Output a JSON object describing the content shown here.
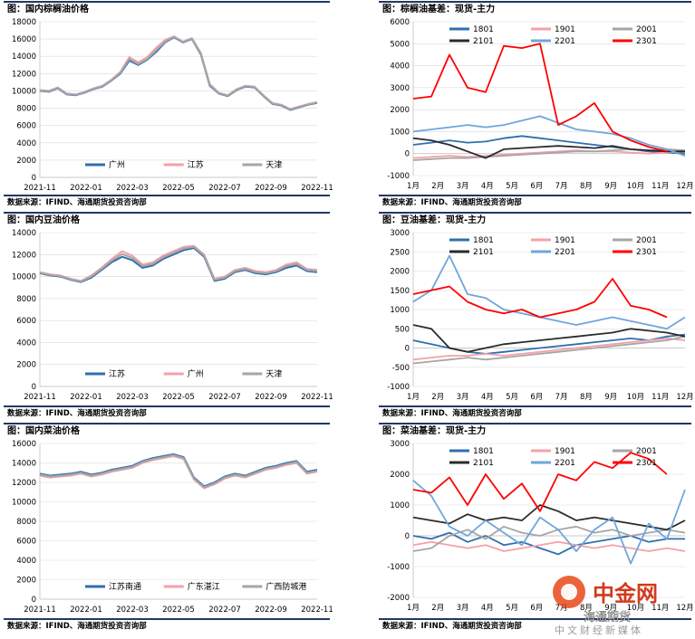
{
  "charts": [
    {
      "title": "图：国内棕榈油价格",
      "source": "数据来源：IFIND、海通期货投资咨询部",
      "chart_data": {
        "type": "line",
        "xticks": [
          "2021-11",
          "2022-01",
          "2022-03",
          "2022-05",
          "2022-07",
          "2022-09",
          "2022-11"
        ],
        "yticks": [
          0,
          2000,
          4000,
          6000,
          8000,
          10000,
          12000,
          14000,
          16000,
          18000
        ],
        "ylim": [
          0,
          18000
        ],
        "series": [
          {
            "name": "广州",
            "color": "#2f6fad",
            "values": [
              10000,
              9900,
              10300,
              9600,
              9500,
              9800,
              10200,
              10500,
              11200,
              12000,
              13500,
              13000,
              13600,
              14500,
              15600,
              16200,
              15600,
              16000,
              14200,
              10600,
              9700,
              9400,
              10100,
              10500,
              10400,
              9400,
              8500,
              8300,
              7800,
              8100,
              8400,
              8600
            ]
          },
          {
            "name": "江苏",
            "color": "#f4a0a8",
            "values": [
              10100,
              10000,
              10400,
              9700,
              9600,
              9900,
              10300,
              10600,
              11300,
              12200,
              13900,
              13300,
              13900,
              15000,
              15900,
              16300,
              15700,
              16100,
              14400,
              10800,
              9800,
              9500,
              10200,
              10600,
              10500,
              9500,
              8600,
              8400,
              7900,
              8200,
              8500,
              8700
            ]
          },
          {
            "name": "天津",
            "color": "#a6a6a6",
            "values": [
              10050,
              9950,
              10350,
              9650,
              9550,
              9850,
              10250,
              10550,
              11250,
              12100,
              13700,
              13100,
              13700,
              14700,
              15700,
              16250,
              15650,
              16050,
              14300,
              10700,
              9750,
              9450,
              10150,
              10550,
              10450,
              9450,
              8550,
              8350,
              7850,
              8150,
              8450,
              8650
            ]
          }
        ]
      }
    },
    {
      "title": "图：棕榈油基差：现货-主力",
      "source": "数据来源：IFIND、海通期货投资咨询部",
      "chart_data": {
        "type": "line",
        "xticks": [
          "1月",
          "2月",
          "3月",
          "4月",
          "5月",
          "6月",
          "7月",
          "8月",
          "9月",
          "10月",
          "11月",
          "12月"
        ],
        "yticks": [
          -1000,
          0,
          1000,
          2000,
          3000,
          4000,
          5000,
          6000
        ],
        "ylim": [
          -1000,
          6000
        ],
        "series": [
          {
            "name": "1801",
            "color": "#2f6fad",
            "values": [
              400,
              500,
              600,
              500,
              550,
              700,
              800,
              700,
              600,
              500,
              400,
              300,
              200,
              100,
              50,
              0
            ]
          },
          {
            "name": "1901",
            "color": "#f4a0a8",
            "values": [
              -200,
              -150,
              -100,
              -150,
              -100,
              -50,
              0,
              50,
              100,
              150,
              100,
              100,
              50,
              0,
              50,
              100
            ]
          },
          {
            "name": "2001",
            "color": "#a6a6a6",
            "values": [
              -300,
              -250,
              -200,
              -200,
              -150,
              -100,
              -50,
              0,
              50,
              100,
              100,
              150,
              200,
              150,
              200,
              150
            ]
          },
          {
            "name": "2101",
            "color": "#2b2b2b",
            "values": [
              700,
              600,
              400,
              100,
              -200,
              200,
              250,
              300,
              350,
              300,
              250,
              350,
              200,
              150,
              100,
              100
            ]
          },
          {
            "name": "2201",
            "color": "#6ea6dc",
            "values": [
              1000,
              1100,
              1200,
              1300,
              1200,
              1300,
              1500,
              1700,
              1400,
              1100,
              1000,
              900,
              700,
              400,
              200,
              -100
            ]
          },
          {
            "name": "2301",
            "color": "#ff0000",
            "values": [
              2500,
              2600,
              4500,
              3000,
              2800,
              4900,
              4800,
              5000,
              1300,
              1700,
              2300,
              1000,
              600,
              300,
              100,
              null
            ]
          }
        ]
      }
    },
    {
      "title": "图：国内豆油价格",
      "source": "数据来源：IFIND、海通期货投资咨询部",
      "chart_data": {
        "type": "line",
        "xticks": [
          "2021-11",
          "2022-01",
          "2022-03",
          "2022-05",
          "2022-07",
          "2022-09",
          "2022-11"
        ],
        "yticks": [
          0,
          2000,
          4000,
          6000,
          8000,
          10000,
          12000,
          14000
        ],
        "ylim": [
          0,
          14000
        ],
        "series": [
          {
            "name": "江苏",
            "color": "#2f6fad",
            "values": [
              10300,
              10100,
              10000,
              9700,
              9500,
              9900,
              10600,
              11300,
              11800,
              11500,
              10800,
              11000,
              11600,
              12000,
              12400,
              12600,
              11800,
              9600,
              9800,
              10400,
              10600,
              10300,
              10200,
              10400,
              10800,
              11000,
              10500,
              10400
            ]
          },
          {
            "name": "广州",
            "color": "#f4a0a8",
            "values": [
              10400,
              10200,
              10100,
              9800,
              9600,
              10100,
              10800,
              11600,
              12300,
              11900,
              11100,
              11300,
              11900,
              12300,
              12700,
              12800,
              12000,
              9800,
              10000,
              10600,
              10800,
              10500,
              10400,
              10600,
              11100,
              11300,
              10700,
              10600
            ]
          },
          {
            "name": "天津",
            "color": "#a6a6a6",
            "values": [
              10350,
              10150,
              10050,
              9750,
              9550,
              10000,
              10700,
              11450,
              12050,
              11700,
              10950,
              11150,
              11750,
              12150,
              12550,
              12700,
              11900,
              9700,
              9900,
              10500,
              10700,
              10400,
              10300,
              10500,
              10950,
              11150,
              10600,
              10500
            ]
          }
        ]
      }
    },
    {
      "title": "图：豆油基差：现货-主力",
      "source": "数据来源：IFIND、海通期货投资咨询部",
      "chart_data": {
        "type": "line",
        "xticks": [
          "1月",
          "2月",
          "3月",
          "4月",
          "5月",
          "6月",
          "7月",
          "8月",
          "9月",
          "10月",
          "11月",
          "12月"
        ],
        "yticks": [
          -1000,
          -500,
          0,
          500,
          1000,
          1500,
          2000,
          2500,
          3000
        ],
        "ylim": [
          -1000,
          3000
        ],
        "series": [
          {
            "name": "1801",
            "color": "#2f6fad",
            "values": [
              200,
              100,
              0,
              -100,
              -150,
              -100,
              -50,
              0,
              50,
              100,
              150,
              200,
              250,
              200,
              300,
              350
            ]
          },
          {
            "name": "1901",
            "color": "#f4a0a8",
            "values": [
              -300,
              -250,
              -200,
              -200,
              -150,
              -200,
              -150,
              -100,
              -50,
              0,
              50,
              100,
              150,
              200,
              250,
              200
            ]
          },
          {
            "name": "2001",
            "color": "#a6a6a6",
            "values": [
              -400,
              -350,
              -300,
              -250,
              -300,
              -250,
              -200,
              -150,
              -100,
              -50,
              0,
              50,
              100,
              150,
              200,
              300
            ]
          },
          {
            "name": "2101",
            "color": "#2b2b2b",
            "values": [
              600,
              500,
              0,
              -100,
              0,
              100,
              150,
              200,
              250,
              300,
              350,
              400,
              500,
              450,
              400,
              300
            ]
          },
          {
            "name": "2201",
            "color": "#6ea6dc",
            "values": [
              1200,
              1500,
              2400,
              1400,
              1300,
              1000,
              900,
              800,
              700,
              600,
              700,
              800,
              700,
              600,
              500,
              800
            ]
          },
          {
            "name": "2301",
            "color": "#ff0000",
            "values": [
              1400,
              1500,
              1600,
              1200,
              1000,
              900,
              1000,
              800,
              900,
              1000,
              1200,
              1800,
              1100,
              1000,
              800,
              null
            ]
          }
        ]
      }
    },
    {
      "title": "图：国内菜油价格",
      "source": "数据来源：IFIND、海通期货投资咨询部",
      "chart_data": {
        "type": "line",
        "xticks": [
          "2021-11",
          "2022-01",
          "2022-03",
          "2022-05",
          "2022-07",
          "2022-09",
          "2022-11"
        ],
        "yticks": [
          0,
          2000,
          4000,
          6000,
          8000,
          10000,
          12000,
          14000,
          16000
        ],
        "ylim": [
          0,
          16000
        ],
        "series": [
          {
            "name": "江苏南通",
            "color": "#2f6fad",
            "values": [
              12900,
              12700,
              12800,
              12900,
              13100,
              12800,
              13000,
              13300,
              13500,
              13700,
              14200,
              14500,
              14700,
              14900,
              14600,
              12500,
              11600,
              12000,
              12600,
              12900,
              12700,
              13100,
              13500,
              13700,
              14000,
              14200,
              13100,
              13300
            ]
          },
          {
            "name": "广东湛江",
            "color": "#f4a0a8",
            "values": [
              12700,
              12500,
              12600,
              12700,
              12900,
              12600,
              12800,
              13100,
              13300,
              13500,
              14000,
              14300,
              14500,
              14700,
              14400,
              12300,
              11400,
              11800,
              12400,
              12700,
              12500,
              12900,
              13300,
              13500,
              13800,
              14000,
              12900,
              13100
            ]
          },
          {
            "name": "广西防城港",
            "color": "#a6a6a6",
            "values": [
              12800,
              12600,
              12700,
              12800,
              13000,
              12700,
              12900,
              13200,
              13400,
              13600,
              14100,
              14400,
              14600,
              14800,
              14500,
              12400,
              11500,
              11900,
              12500,
              12800,
              12600,
              13000,
              13400,
              13600,
              13900,
              14100,
              13000,
              13200
            ]
          }
        ]
      }
    },
    {
      "title": "图：菜油基差：现货-主力",
      "source": "数据来源：IFIND、海通期货投资咨询部",
      "chart_data": {
        "type": "line",
        "xticks": [
          "1月",
          "2月",
          "3月",
          "4月",
          "5月",
          "6月",
          "7月",
          "8月",
          "9月",
          "10月",
          "11月",
          "12月"
        ],
        "yticks": [
          -2000,
          -1000,
          0,
          1000,
          2000,
          3000
        ],
        "ylim": [
          -2000,
          3000
        ],
        "series": [
          {
            "name": "1801",
            "color": "#2f6fad",
            "values": [
              0,
              -100,
              100,
              -200,
              0,
              -300,
              -200,
              -400,
              -600,
              -300,
              -200,
              -100,
              0,
              -200,
              -100,
              -100
            ]
          },
          {
            "name": "1901",
            "color": "#f4a0a8",
            "values": [
              -300,
              -200,
              -300,
              -400,
              -300,
              -500,
              -400,
              -300,
              -200,
              -300,
              -400,
              -300,
              -400,
              -500,
              -400,
              -500
            ]
          },
          {
            "name": "2001",
            "color": "#a6a6a6",
            "values": [
              -500,
              -400,
              0,
              200,
              -100,
              300,
              100,
              0,
              200,
              300,
              100,
              200,
              0,
              100,
              200,
              100
            ]
          },
          {
            "name": "2101",
            "color": "#2b2b2b",
            "values": [
              600,
              500,
              400,
              700,
              500,
              600,
              500,
              1000,
              800,
              500,
              600,
              500,
              400,
              300,
              200,
              500
            ]
          },
          {
            "name": "2201",
            "color": "#6ea6dc",
            "values": [
              1800,
              1300,
              300,
              0,
              500,
              100,
              -300,
              600,
              200,
              -500,
              200,
              600,
              -900,
              400,
              -100,
              1500
            ]
          },
          {
            "name": "2301",
            "color": "#ff0000",
            "values": [
              1500,
              1400,
              1900,
              1000,
              2000,
              1200,
              1700,
              800,
              2000,
              1800,
              2400,
              2200,
              2700,
              2500,
              2000,
              null
            ]
          }
        ]
      }
    }
  ],
  "watermark": {
    "brand": "中金网",
    "sub": "中文财经新媒体",
    "company": "海通期货"
  }
}
